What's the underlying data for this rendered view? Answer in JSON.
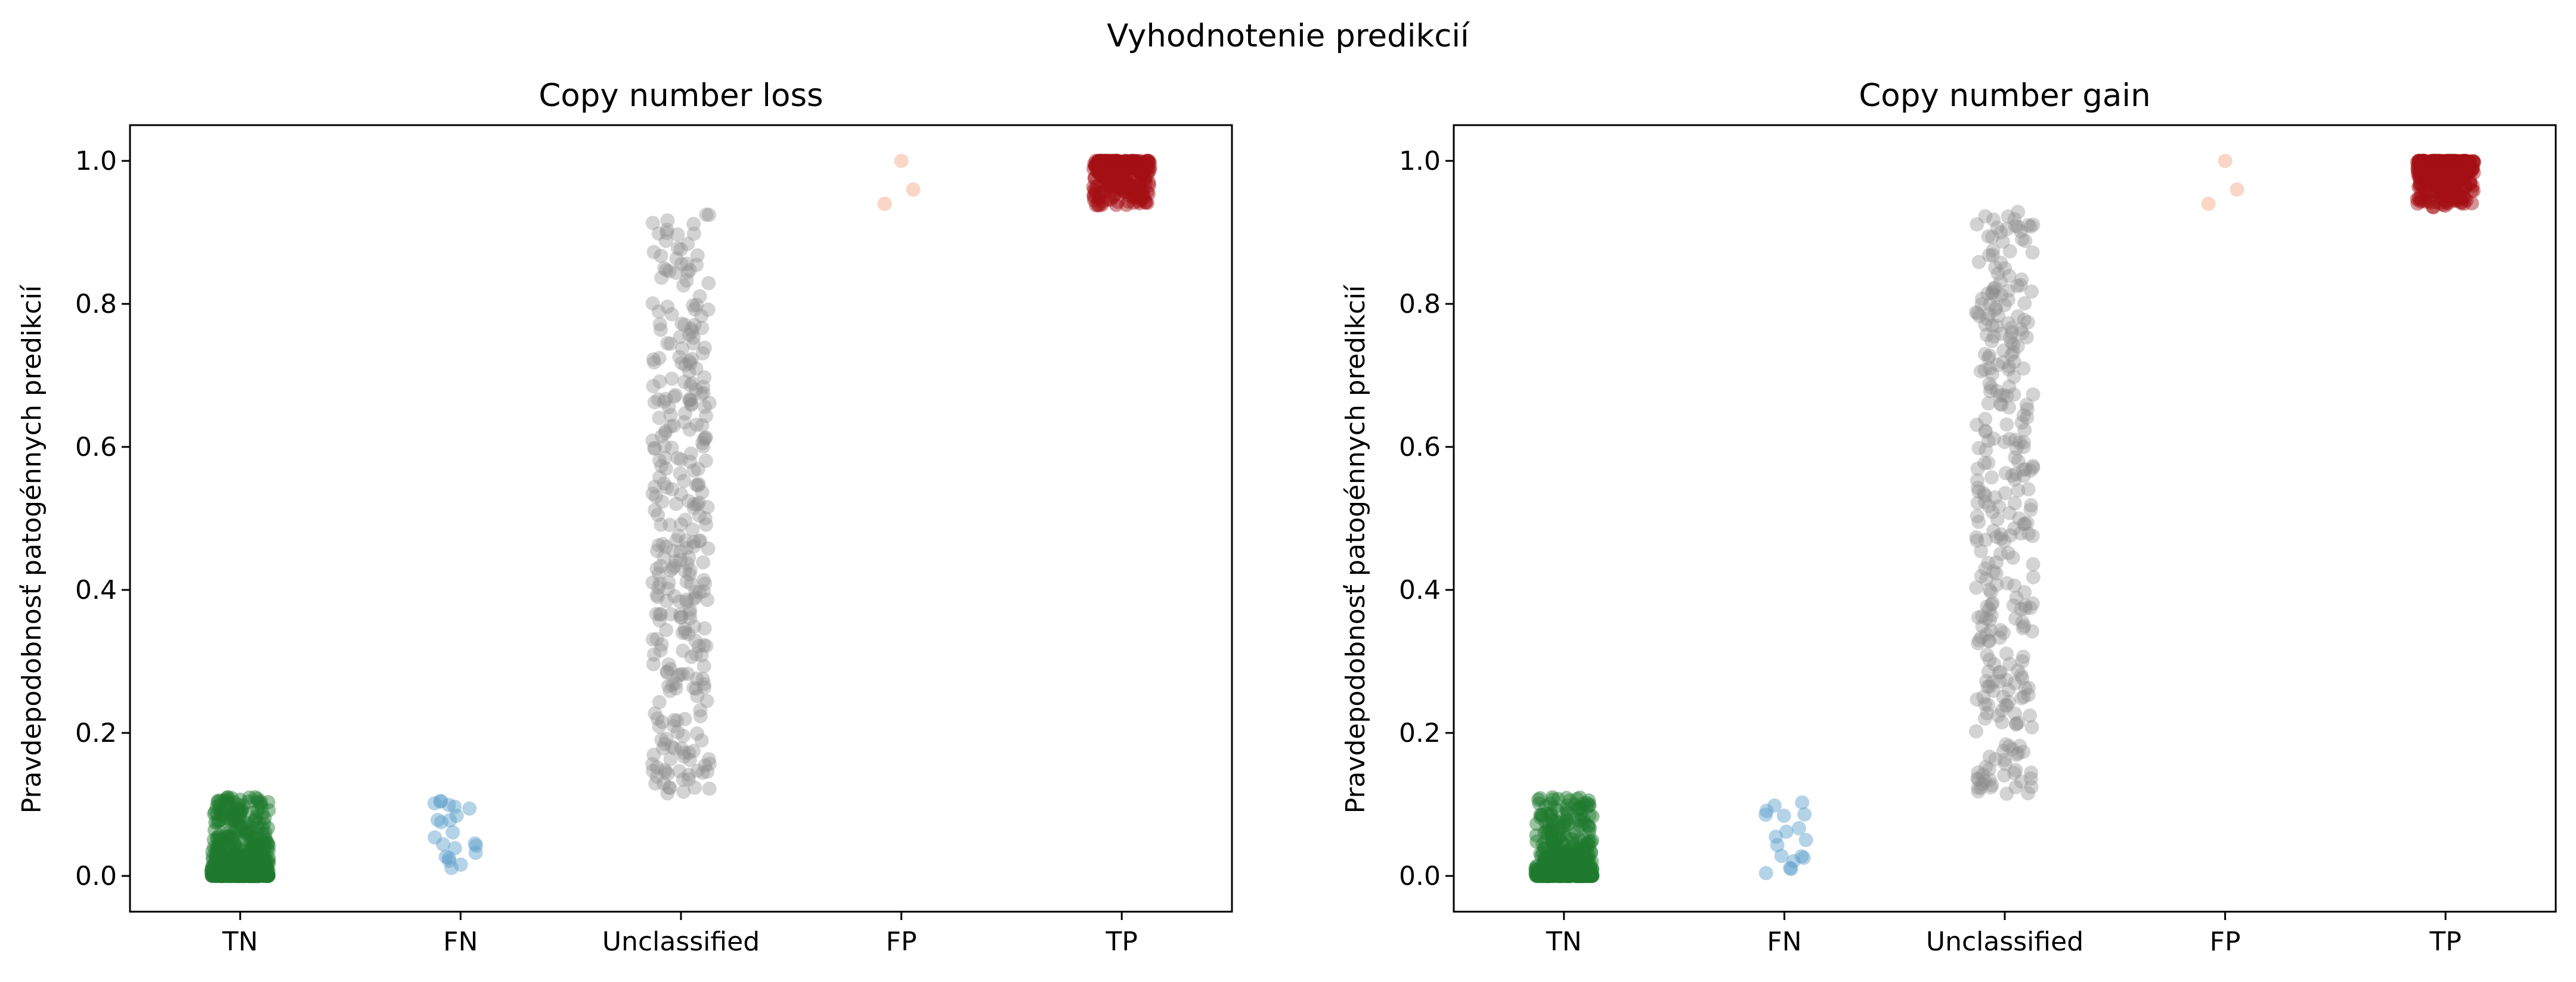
{
  "figure": {
    "suptitle": "Vyhodnotenie predikcií"
  },
  "chart_data": [
    {
      "type": "scatter",
      "subtype": "strip",
      "title": "Copy number loss",
      "xlabel": "",
      "ylabel": "Pravdepodobnosť patogénnych predikcií",
      "categories": [
        "TN",
        "FN",
        "Unclassified",
        "FP",
        "TP"
      ],
      "ylim": [
        -0.05,
        1.05
      ],
      "yticks": [
        0.0,
        0.2,
        0.4,
        0.6,
        0.8,
        1.0
      ],
      "ytick_labels": [
        "0.0",
        "0.2",
        "0.4",
        "0.6",
        "0.8",
        "1.0"
      ],
      "grid": false,
      "series": [
        {
          "category": "TN",
          "color": "#1f7a2e",
          "count": 500,
          "yrange": [
            0.0,
            0.11
          ]
        },
        {
          "category": "FN",
          "color": "#5b9ec9",
          "count": 22,
          "yrange": [
            0.0,
            0.105
          ]
        },
        {
          "category": "Unclassified",
          "color": "#8c8c8c",
          "count": 320,
          "yrange": [
            0.115,
            0.93
          ]
        },
        {
          "category": "FP",
          "color": "#f4a582",
          "values": [
            1.0,
            0.96,
            0.94
          ]
        },
        {
          "category": "TP",
          "color": "#a50f15",
          "count": 300,
          "yrange": [
            0.935,
            1.0
          ]
        }
      ]
    },
    {
      "type": "scatter",
      "subtype": "strip",
      "title": "Copy number gain",
      "xlabel": "",
      "ylabel": "Pravdepodobnosť patogénnych predikcií",
      "categories": [
        "TN",
        "FN",
        "Unclassified",
        "FP",
        "TP"
      ],
      "ylim": [
        -0.05,
        1.05
      ],
      "yticks": [
        0.0,
        0.2,
        0.4,
        0.6,
        0.8,
        1.0
      ],
      "ytick_labels": [
        "0.0",
        "0.2",
        "0.4",
        "0.6",
        "0.8",
        "1.0"
      ],
      "grid": false,
      "series": [
        {
          "category": "TN",
          "color": "#1f7a2e",
          "count": 500,
          "yrange": [
            0.0,
            0.11
          ]
        },
        {
          "category": "FN",
          "color": "#5b9ec9",
          "count": 18,
          "yrange": [
            0.0,
            0.105
          ]
        },
        {
          "category": "Unclassified",
          "color": "#8c8c8c",
          "count": 320,
          "yrange": [
            0.115,
            0.93
          ]
        },
        {
          "category": "FP",
          "color": "#f4a582",
          "values": [
            1.0,
            0.96,
            0.94
          ]
        },
        {
          "category": "TP",
          "color": "#a50f15",
          "count": 300,
          "yrange": [
            0.935,
            1.0
          ]
        }
      ]
    }
  ]
}
